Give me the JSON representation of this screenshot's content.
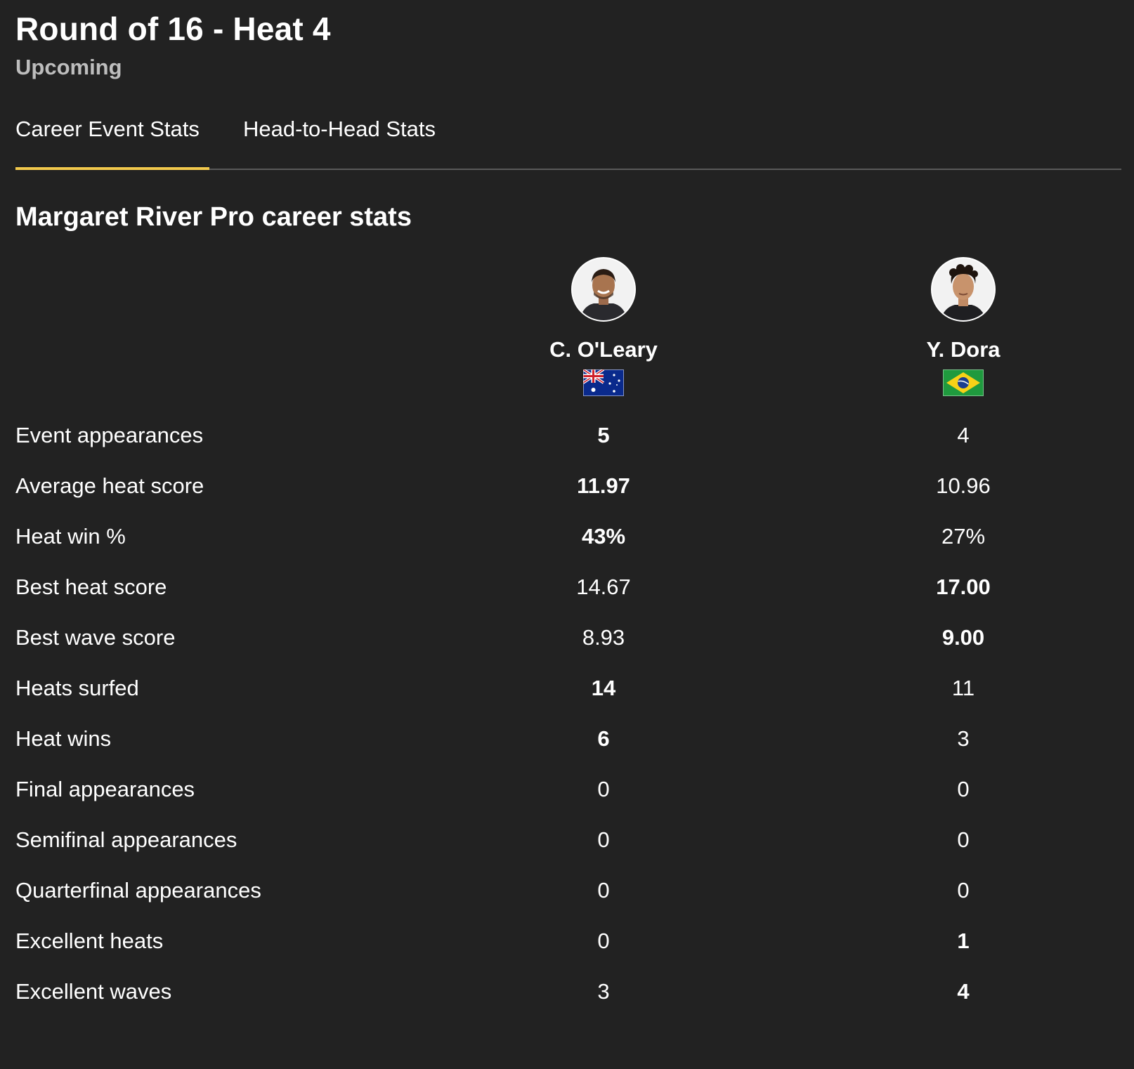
{
  "heat": {
    "title": "Round of 16 - Heat 4",
    "status": "Upcoming"
  },
  "tabs": [
    {
      "label": "Career Event Stats",
      "active": true
    },
    {
      "label": "Head-to-Head Stats",
      "active": false
    }
  ],
  "colors": {
    "background": "#222222",
    "accent": "#f2c94c",
    "muted_text": "#bdbdbd"
  },
  "section": {
    "title": "Margaret River Pro career stats"
  },
  "surfers": [
    {
      "name": "C. O'Leary",
      "flag": "australia-flag-icon"
    },
    {
      "name": "Y. Dora",
      "flag": "brazil-flag-icon"
    }
  ],
  "stats": [
    {
      "label": "Event appearances",
      "s1": "5",
      "s2": "4",
      "leader": "s1"
    },
    {
      "label": "Average heat score",
      "s1": "11.97",
      "s2": "10.96",
      "leader": "s1"
    },
    {
      "label": "Heat win %",
      "s1": "43%",
      "s2": "27%",
      "leader": "s1"
    },
    {
      "label": "Best heat score",
      "s1": "14.67",
      "s2": "17.00",
      "leader": "s2"
    },
    {
      "label": "Best wave score",
      "s1": "8.93",
      "s2": "9.00",
      "leader": "s2"
    },
    {
      "label": "Heats surfed",
      "s1": "14",
      "s2": "11",
      "leader": "s1"
    },
    {
      "label": "Heat wins",
      "s1": "6",
      "s2": "3",
      "leader": "s1"
    },
    {
      "label": "Final appearances",
      "s1": "0",
      "s2": "0",
      "leader": ""
    },
    {
      "label": "Semifinal appearances",
      "s1": "0",
      "s2": "0",
      "leader": ""
    },
    {
      "label": "Quarterfinal appearances",
      "s1": "0",
      "s2": "0",
      "leader": ""
    },
    {
      "label": "Excellent heats",
      "s1": "0",
      "s2": "1",
      "leader": "s2"
    },
    {
      "label": "Excellent waves",
      "s1": "3",
      "s2": "4",
      "leader": "s2"
    }
  ]
}
